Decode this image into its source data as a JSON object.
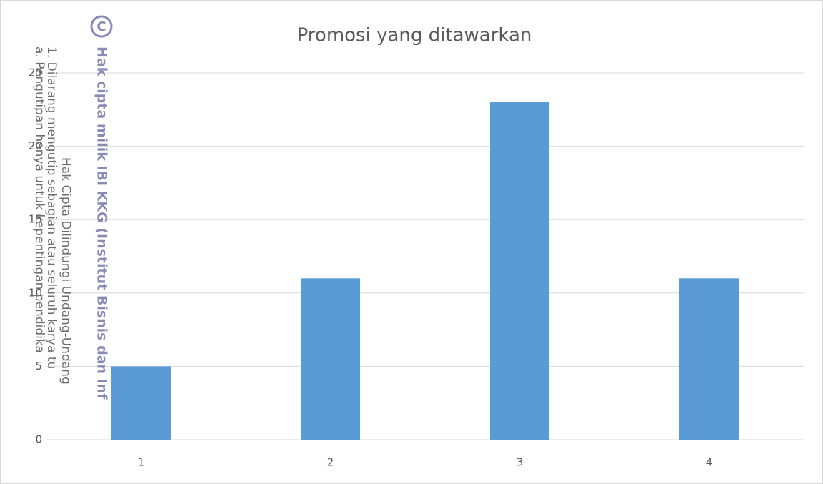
{
  "chart_data": {
    "type": "bar",
    "title": "Promosi yang ditawarkan",
    "categories": [
      "1",
      "2",
      "3",
      "4"
    ],
    "values": [
      5,
      11,
      23,
      11
    ],
    "color": "#5b9bd5",
    "ylim": [
      0,
      25
    ],
    "yticks": [
      0,
      5,
      10,
      15,
      20,
      25
    ],
    "grid": true,
    "annotations": [
      "C",
      "Hak cipta milik IBI KKG (Institut Bisnis dan Inf",
      "Hak Cipta Dilindungi Undang-Undang",
      "1. Dilarang mengutip sebagian atau seluruh karya tu",
      "a. Pengutipan hanya untuk kepentingan pendidika"
    ]
  }
}
